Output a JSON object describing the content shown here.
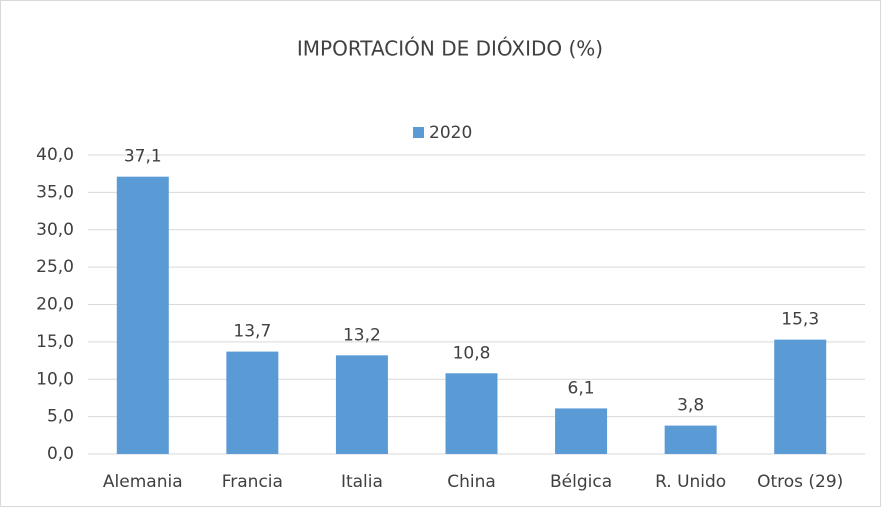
{
  "chart_data": {
    "type": "bar",
    "title": "IMPORTACIÓN DE DIÓXIDO (%)",
    "categories": [
      "Alemania",
      "Francia",
      "Italia",
      "China",
      "Bélgica",
      "R. Unido",
      "Otros (29)"
    ],
    "series": [
      {
        "name": "2020",
        "color": "#5b9bd5",
        "values": [
          37.1,
          13.7,
          13.2,
          10.8,
          6.1,
          3.8,
          15.3
        ],
        "value_labels": [
          "37,1",
          "13,7",
          "13,2",
          "10,8",
          "6,1",
          "3,8",
          "15,3"
        ]
      }
    ],
    "ylim": [
      0,
      40
    ],
    "yticks": [
      {
        "value": 0,
        "label": "0,0"
      },
      {
        "value": 5,
        "label": "5,0"
      },
      {
        "value": 10,
        "label": "10,0"
      },
      {
        "value": 15,
        "label": "15,0"
      },
      {
        "value": 20,
        "label": "20,0"
      },
      {
        "value": 25,
        "label": "25,0"
      },
      {
        "value": 30,
        "label": "30,0"
      },
      {
        "value": 35,
        "label": "35,0"
      },
      {
        "value": 40,
        "label": "40,0"
      }
    ],
    "grid": true,
    "legend": "top"
  }
}
